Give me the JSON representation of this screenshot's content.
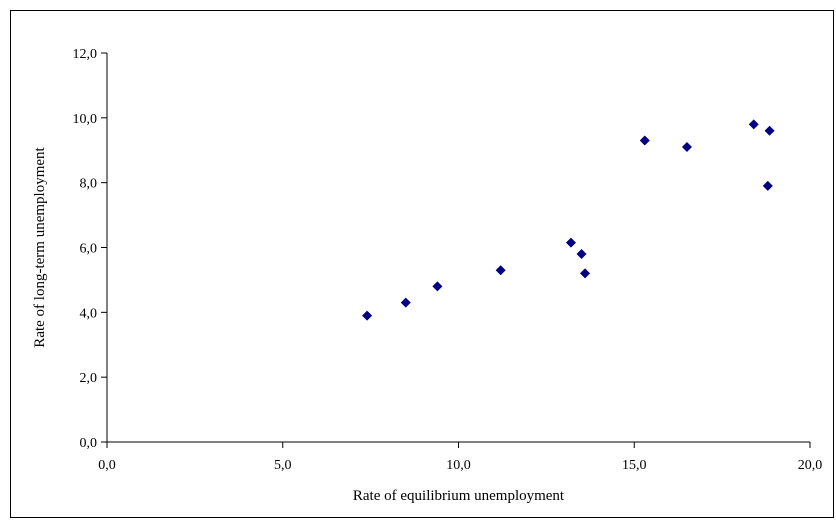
{
  "chart_data": {
    "type": "scatter",
    "title": "",
    "xlabel": "Rate of equilibrium unemployment",
    "ylabel": "Rate of long-term unemployment",
    "xlim": [
      0,
      20
    ],
    "ylim": [
      0,
      12
    ],
    "x_ticks": [
      0,
      5,
      10,
      15,
      20
    ],
    "y_ticks": [
      0,
      2,
      4,
      6,
      8,
      10,
      12
    ],
    "x_tick_labels": [
      "0,0",
      "5,0",
      "10,0",
      "15,0",
      "20,0"
    ],
    "y_tick_labels": [
      "0,0",
      "2,0",
      "4,0",
      "6,0",
      "8,0",
      "10,0",
      "12,0"
    ],
    "grid": false,
    "legend": "none",
    "marker_color": "#000080",
    "points": [
      {
        "x": 7.4,
        "y": 3.9
      },
      {
        "x": 8.5,
        "y": 4.3
      },
      {
        "x": 9.4,
        "y": 4.8
      },
      {
        "x": 11.2,
        "y": 5.3
      },
      {
        "x": 13.2,
        "y": 6.15
      },
      {
        "x": 13.5,
        "y": 5.8
      },
      {
        "x": 13.6,
        "y": 5.2
      },
      {
        "x": 15.3,
        "y": 9.3
      },
      {
        "x": 16.5,
        "y": 9.1
      },
      {
        "x": 18.4,
        "y": 9.8
      },
      {
        "x": 18.85,
        "y": 9.6
      },
      {
        "x": 18.8,
        "y": 7.9
      }
    ]
  }
}
